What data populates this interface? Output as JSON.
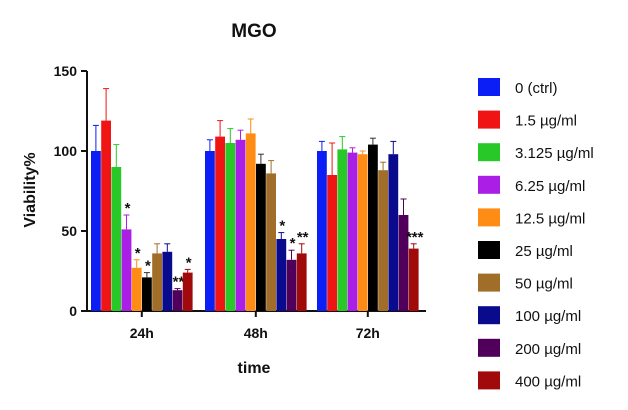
{
  "chart_data": {
    "type": "bar",
    "title": "MGO",
    "xlabel": "time",
    "ylabel": "Viability%",
    "ylim": [
      0,
      150
    ],
    "yticks": [
      0,
      50,
      100,
      150
    ],
    "categories": [
      "24h",
      "48h",
      "72h"
    ],
    "series": [
      {
        "name": "0 (ctrl)",
        "color": "#0a1ef5",
        "values": [
          100,
          100,
          100
        ],
        "errors": [
          16,
          7,
          6
        ],
        "sig": [
          "",
          "",
          ""
        ]
      },
      {
        "name": "1.5 µg/ml",
        "color": "#f01414",
        "values": [
          119,
          109,
          85
        ],
        "errors": [
          20,
          10,
          20
        ],
        "sig": [
          "",
          "",
          ""
        ]
      },
      {
        "name": "3.125 µg/ml",
        "color": "#28c828",
        "values": [
          90,
          105,
          101
        ],
        "errors": [
          14,
          9,
          8
        ],
        "sig": [
          "",
          "",
          ""
        ]
      },
      {
        "name": "6.25 µg/ml",
        "color": "#aa1ee6",
        "values": [
          51,
          107,
          99
        ],
        "errors": [
          9,
          6,
          3
        ],
        "sig": [
          "*",
          "",
          ""
        ]
      },
      {
        "name": "12.5 µg/ml",
        "color": "#ff8c14",
        "values": [
          27,
          111,
          98
        ],
        "errors": [
          5,
          9,
          2
        ],
        "sig": [
          "*",
          "",
          ""
        ]
      },
      {
        "name": "25 µg/ml",
        "color": "#000000",
        "values": [
          21,
          92,
          104
        ],
        "errors": [
          3,
          6,
          4
        ],
        "sig": [
          "*",
          "",
          ""
        ]
      },
      {
        "name": "50 µg/ml",
        "color": "#a06e28",
        "values": [
          36,
          86,
          88
        ],
        "errors": [
          6,
          8,
          5
        ],
        "sig": [
          "",
          "",
          ""
        ]
      },
      {
        "name": "100 µg/ml",
        "color": "#0a0a8c",
        "values": [
          37,
          45,
          98
        ],
        "errors": [
          5,
          4,
          8
        ],
        "sig": [
          "",
          "*",
          ""
        ]
      },
      {
        "name": "200 µg/ml",
        "color": "#50005a",
        "values": [
          13,
          32,
          60
        ],
        "errors": [
          1,
          6,
          10
        ],
        "sig": [
          "**",
          "*",
          ""
        ]
      },
      {
        "name": "400 µg/ml",
        "color": "#a00a0a",
        "values": [
          24,
          36,
          39
        ],
        "errors": [
          2,
          6,
          3
        ],
        "sig": [
          "*",
          "**",
          "***"
        ]
      }
    ]
  }
}
